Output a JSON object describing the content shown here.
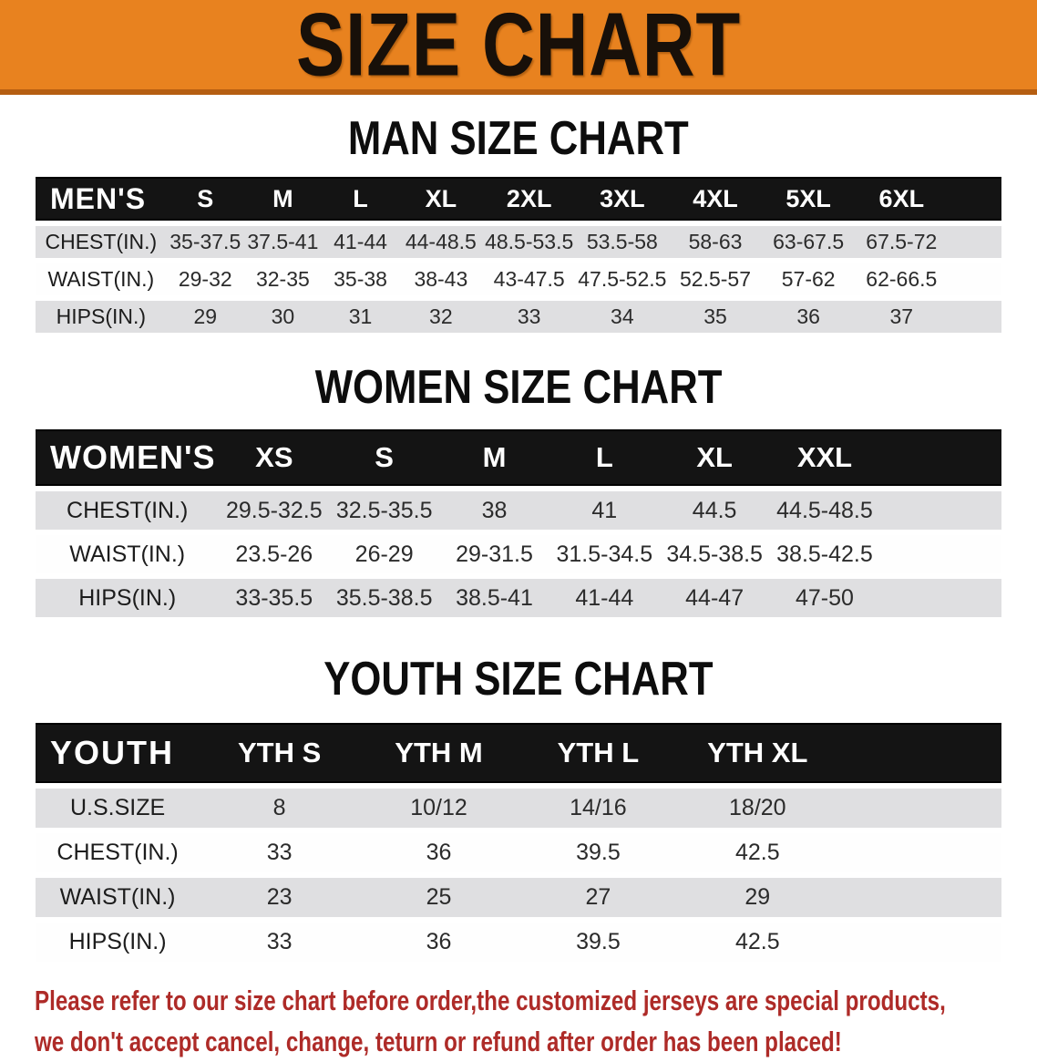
{
  "banner": {
    "title": "SIZE CHART",
    "bg_color": "#E8821F",
    "edge_color": "#B55E12",
    "text_color": "#181009"
  },
  "sections": [
    {
      "title": "MAN SIZE CHART",
      "header_label": "MEN'S",
      "columns": [
        "S",
        "M",
        "L",
        "XL",
        "2XL",
        "3XL",
        "4XL",
        "5XL",
        "6XL"
      ],
      "rows": [
        {
          "label": "CHEST(IN.)",
          "values": [
            "35-37.5",
            "37.5-41",
            "41-44",
            "44-48.5",
            "48.5-53.5",
            "53.5-58",
            "58-63",
            "63-67.5",
            "67.5-72"
          ]
        },
        {
          "label": "WAIST(IN.)",
          "values": [
            "29-32",
            "32-35",
            "35-38",
            "38-43",
            "43-47.5",
            "47.5-52.5",
            "52.5-57",
            "57-62",
            "62-66.5"
          ]
        },
        {
          "label": "HIPS(IN.)",
          "values": [
            "29",
            "30",
            "31",
            "32",
            "33",
            "34",
            "35",
            "36",
            "37"
          ]
        }
      ]
    },
    {
      "title": "WOMEN SIZE CHART",
      "header_label": "WOMEN'S",
      "columns": [
        "XS",
        "S",
        "M",
        "L",
        "XL",
        "XXL"
      ],
      "rows": [
        {
          "label": "CHEST(IN.)",
          "values": [
            "29.5-32.5",
            "32.5-35.5",
            "38",
            "41",
            "44.5",
            "44.5-48.5"
          ]
        },
        {
          "label": "WAIST(IN.)",
          "values": [
            "23.5-26",
            "26-29",
            "29-31.5",
            "31.5-34.5",
            "34.5-38.5",
            "38.5-42.5"
          ]
        },
        {
          "label": "HIPS(IN.)",
          "values": [
            "33-35.5",
            "35.5-38.5",
            "38.5-41",
            "41-44",
            "44-47",
            "47-50"
          ]
        }
      ]
    },
    {
      "title": "YOUTH SIZE CHART",
      "header_label": "YOUTH",
      "columns": [
        "YTH S",
        "YTH M",
        "YTH L",
        "YTH XL"
      ],
      "rows": [
        {
          "label": "U.S.SIZE",
          "values": [
            "8",
            "10/12",
            "14/16",
            "18/20"
          ]
        },
        {
          "label": "CHEST(IN.)",
          "values": [
            "33",
            "36",
            "39.5",
            "42.5"
          ]
        },
        {
          "label": "WAIST(IN.)",
          "values": [
            "23",
            "25",
            "27",
            "29"
          ]
        },
        {
          "label": "HIPS(IN.)",
          "values": [
            "33",
            "36",
            "39.5",
            "42.5"
          ]
        }
      ]
    }
  ],
  "disclaimer": {
    "line1": "Please refer to our size chart before order,the customized jerseys are special products,",
    "line2": "we don't accept cancel, change, teturn or refund after order has been placed!",
    "color": "#AE2B28"
  },
  "colors": {
    "header_black": "#141414",
    "row_gray": "#DFDFE1",
    "row_white": "#FEFEFE"
  }
}
